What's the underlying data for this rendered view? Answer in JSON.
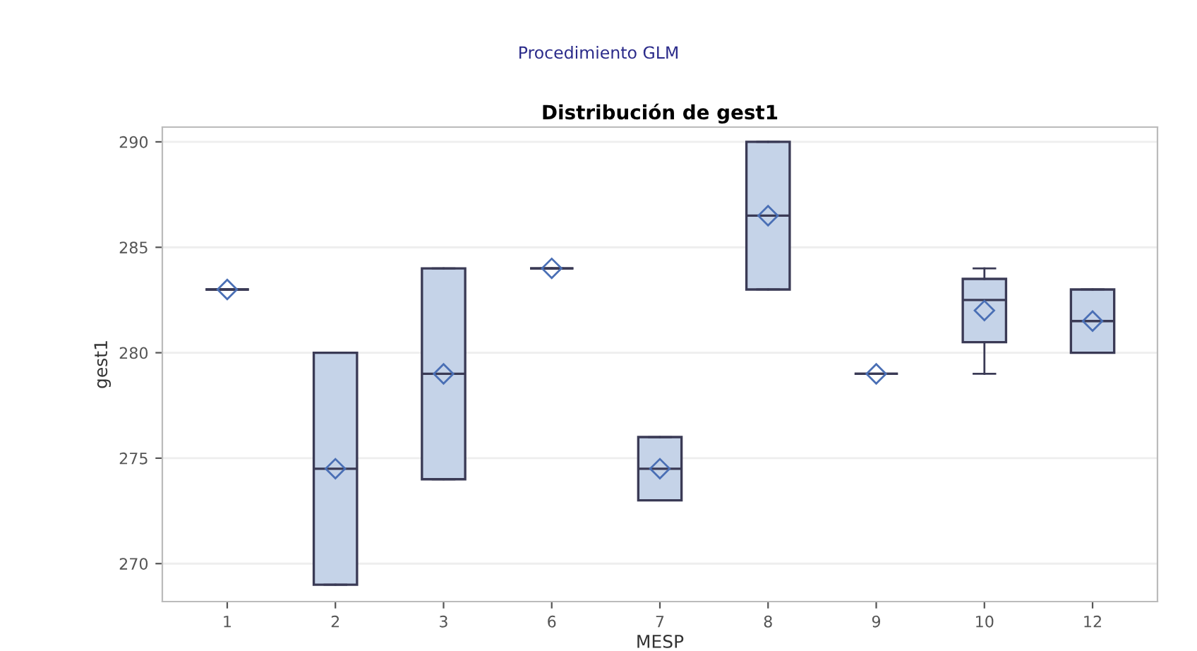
{
  "chart_data": {
    "type": "box",
    "title": "Distribución de gest1",
    "subtitle": "Procedimiento GLM",
    "xlabel": "MESP",
    "ylabel": "gest1",
    "categories": [
      "1",
      "2",
      "3",
      "6",
      "7",
      "8",
      "9",
      "10",
      "12"
    ],
    "boxes": [
      {
        "low": 283,
        "q1": 283,
        "median": 283,
        "q3": 283,
        "high": 283,
        "mean": 283
      },
      {
        "low": 269,
        "q1": 269,
        "median": 274.5,
        "q3": 280,
        "high": 280,
        "mean": 274.5
      },
      {
        "low": 274,
        "q1": 274,
        "median": 279,
        "q3": 284,
        "high": 284,
        "mean": 279
      },
      {
        "low": 284,
        "q1": 284,
        "median": 284,
        "q3": 284,
        "high": 284,
        "mean": 284
      },
      {
        "low": 273,
        "q1": 273,
        "median": 274.5,
        "q3": 276,
        "high": 276,
        "mean": 274.5
      },
      {
        "low": 283,
        "q1": 283,
        "median": 286.5,
        "q3": 290,
        "high": 290,
        "mean": 286.5
      },
      {
        "low": 279,
        "q1": 279,
        "median": 279,
        "q3": 279,
        "high": 279,
        "mean": 279
      },
      {
        "low": 279,
        "q1": 280.5,
        "median": 282.5,
        "q3": 283.5,
        "high": 284,
        "mean": 282
      },
      {
        "low": 280,
        "q1": 280,
        "median": 281.5,
        "q3": 283,
        "high": 283,
        "mean": 281.5
      }
    ],
    "ylim": [
      268.2,
      290.7
    ],
    "yticks": [
      270,
      275,
      280,
      285,
      290
    ],
    "grid": "y",
    "marker": "diamond"
  }
}
